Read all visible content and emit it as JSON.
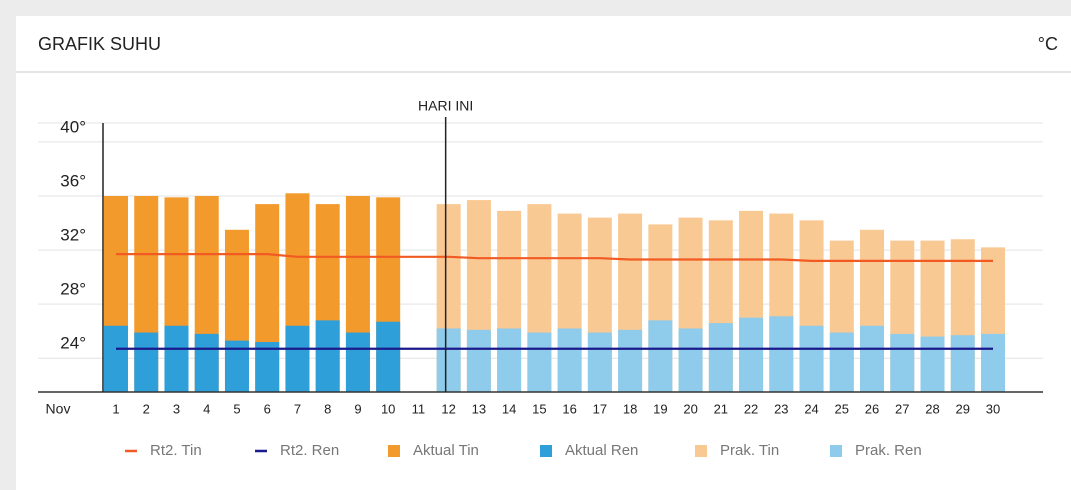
{
  "header": {
    "title": "GRAFIK SUHU",
    "unit": "°C"
  },
  "chart_data": {
    "type": "bar",
    "x_label": "Nov",
    "categories": [
      "1",
      "2",
      "3",
      "4",
      "5",
      "6",
      "7",
      "8",
      "9",
      "10",
      "11",
      "12",
      "13",
      "14",
      "15",
      "16",
      "17",
      "18",
      "19",
      "20",
      "21",
      "22",
      "23",
      "24",
      "25",
      "26",
      "27",
      "28",
      "29",
      "30"
    ],
    "ylim": [
      21.5,
      41.4
    ],
    "yticks": [
      {
        "value": 24,
        "label": "24°"
      },
      {
        "value": 28,
        "label": "28°"
      },
      {
        "value": 32,
        "label": "32°"
      },
      {
        "value": 36,
        "label": "36°"
      },
      {
        "value": 40,
        "label": "40°"
      }
    ],
    "grid": true,
    "annotation": {
      "text": "HARI INI",
      "x": "12"
    },
    "series": [
      {
        "name": "Rt2. Tin",
        "type": "line",
        "color": "#f15a22",
        "values": [
          31.7,
          31.7,
          31.7,
          31.7,
          31.7,
          31.7,
          31.5,
          31.5,
          31.5,
          31.5,
          31.5,
          31.5,
          31.4,
          31.4,
          31.4,
          31.4,
          31.4,
          31.3,
          31.3,
          31.3,
          31.3,
          31.3,
          31.3,
          31.2,
          31.2,
          31.2,
          31.2,
          31.2,
          31.2,
          31.2
        ]
      },
      {
        "name": "Rt2. Ren",
        "type": "line",
        "color": "#1a1a8c",
        "values": [
          24.7,
          24.7,
          24.7,
          24.7,
          24.7,
          24.7,
          24.7,
          24.7,
          24.7,
          24.7,
          24.7,
          24.7,
          24.7,
          24.7,
          24.7,
          24.7,
          24.7,
          24.7,
          24.7,
          24.7,
          24.7,
          24.7,
          24.7,
          24.7,
          24.7,
          24.7,
          24.7,
          24.7,
          24.7,
          24.7
        ]
      },
      {
        "name": "Aktual Tin",
        "type": "bar",
        "color": "#f39a2c",
        "values": [
          36.0,
          36.0,
          35.9,
          36.0,
          33.5,
          35.4,
          36.2,
          35.4,
          36.0,
          35.9,
          null,
          null,
          null,
          null,
          null,
          null,
          null,
          null,
          null,
          null,
          null,
          null,
          null,
          null,
          null,
          null,
          null,
          null,
          null,
          null
        ]
      },
      {
        "name": "Aktual Ren",
        "type": "bar",
        "color": "#2e9fd9",
        "values": [
          26.4,
          25.9,
          26.4,
          25.8,
          25.3,
          25.2,
          26.4,
          26.8,
          25.9,
          26.7,
          null,
          null,
          null,
          null,
          null,
          null,
          null,
          null,
          null,
          null,
          null,
          null,
          null,
          null,
          null,
          null,
          null,
          null,
          null,
          null
        ]
      },
      {
        "name": "Prak. Tin",
        "type": "bar",
        "color": "#f9c994",
        "values": [
          null,
          null,
          null,
          null,
          null,
          null,
          null,
          null,
          null,
          null,
          null,
          35.4,
          35.7,
          34.9,
          35.4,
          34.7,
          34.4,
          34.7,
          33.9,
          34.4,
          34.2,
          34.9,
          34.7,
          34.2,
          32.7,
          33.5,
          32.7,
          32.7,
          32.8,
          32.2
        ]
      },
      {
        "name": "Prak. Ren",
        "type": "bar",
        "color": "#8fcbea",
        "values": [
          null,
          null,
          null,
          null,
          null,
          null,
          null,
          null,
          null,
          null,
          null,
          26.2,
          26.1,
          26.2,
          25.9,
          26.2,
          25.9,
          26.1,
          26.8,
          26.2,
          26.6,
          27.0,
          27.1,
          26.4,
          25.9,
          26.4,
          25.8,
          25.6,
          25.7,
          25.8
        ]
      }
    ]
  }
}
